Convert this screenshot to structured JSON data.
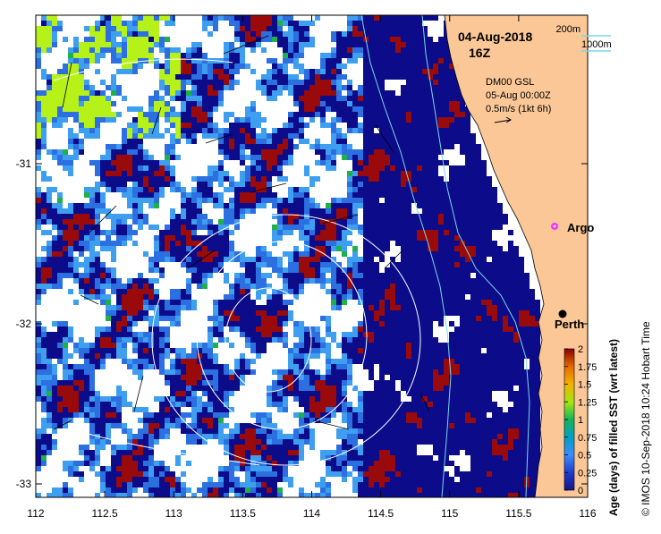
{
  "map": {
    "date": "04-Aug-2018",
    "time": "16Z",
    "scale_200m": "200m",
    "scale_1000m": "1000m",
    "current_source": "DM00 GSL",
    "current_time": "05-Aug 00:00Z",
    "current_speed": "0.5m/s (1kt 6h)",
    "argo_label": "Argo",
    "city_label": "Perth",
    "credit": "© IMOS 10-Sep-2018 10:24 Hobart Time",
    "x_ticks": [
      "112",
      "112.5",
      "113",
      "113.5",
      "114",
      "114.5",
      "115",
      "115.5",
      "116"
    ],
    "y_ticks": [
      "-31",
      "-32",
      "-33"
    ]
  },
  "colorbar": {
    "title": "Age (days) of filled SST (wrt latest)",
    "ticks": [
      "2",
      "1.75",
      "1.5",
      "1.25",
      "1",
      "0.75",
      "0.5",
      "0.25",
      "0"
    ],
    "colors": [
      "#8b0000",
      "#c83200",
      "#e66e00",
      "#f0b400",
      "#a0e614",
      "#14b45a",
      "#00a0c8",
      "#3c8cff",
      "#14148c"
    ]
  },
  "palette": {
    "land": "#fbc796",
    "deep_blue": "#0c0c8a",
    "blue": "#2b6fe0",
    "light_blue": "#3e9ff0",
    "dark_red": "#9a0a0a",
    "lime": "#b6f21a",
    "green": "#1eb04a"
  }
}
